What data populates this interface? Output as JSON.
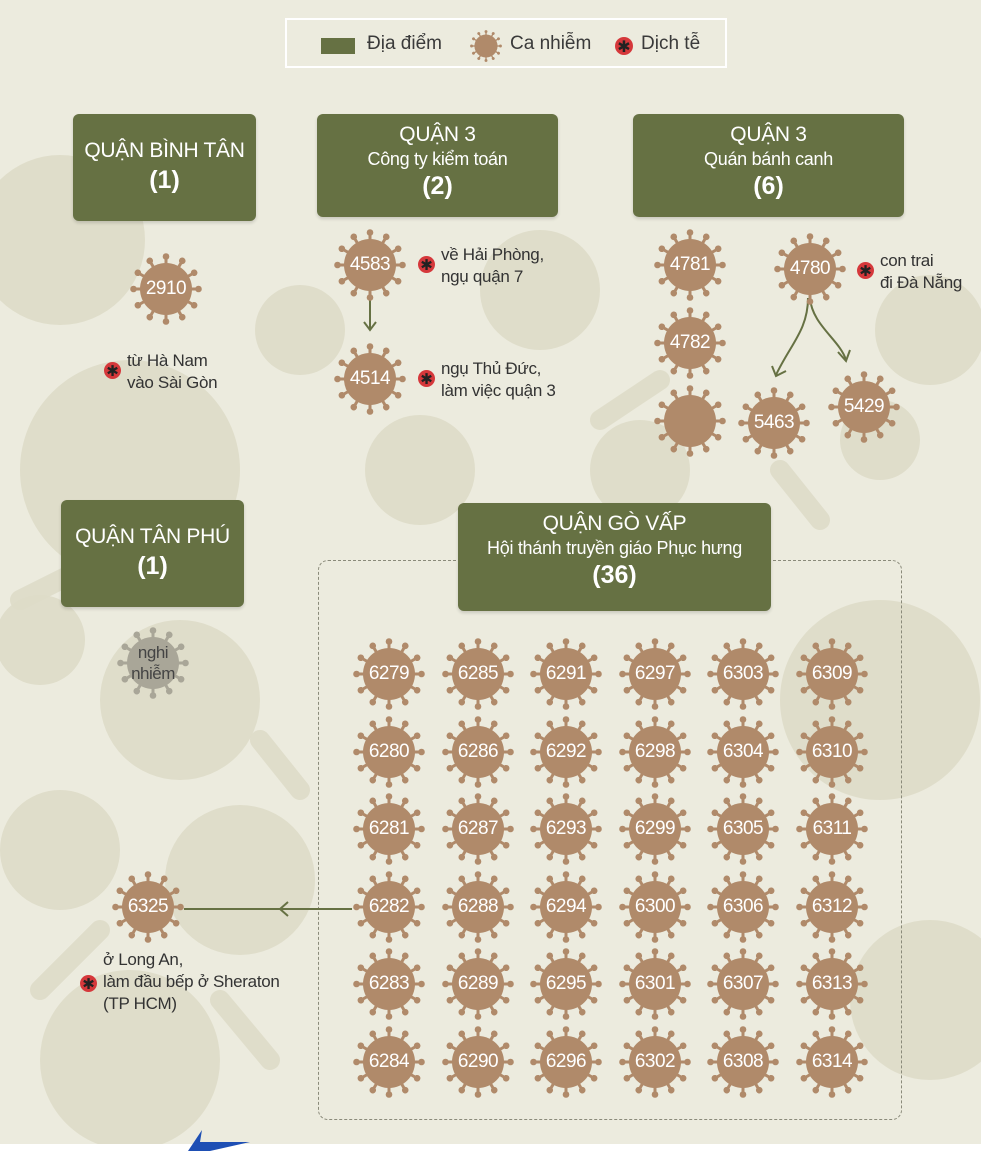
{
  "legend": {
    "location": "Địa điểm",
    "case": "Ca nhiễm",
    "epidemiology": "Dịch tễ",
    "dot_symbol": "✱"
  },
  "colors": {
    "location_box": "#667143",
    "virus": "#b08a6a",
    "virus_grey": "#a9a698",
    "epi_dot": "#d5383b",
    "arrow": "#667143",
    "background": "#ecebde"
  },
  "locations": {
    "binh_tan": {
      "title": "QUẬN BÌNH TÂN",
      "count": "(1)"
    },
    "q3_audit": {
      "title": "QUẬN 3",
      "subtitle": "Công ty kiểm toán",
      "count": "(2)"
    },
    "q3_noodle": {
      "title": "QUẬN 3",
      "subtitle": "Quán bánh canh",
      "count": "(6)"
    },
    "tan_phu": {
      "title": "QUẬN TÂN PHÚ",
      "count": "(1)"
    },
    "go_vap": {
      "title": "QUẬN GÒ VẤP",
      "subtitle": "Hội thánh truyền giáo Phục hưng",
      "count": "(36)"
    }
  },
  "cases": {
    "c2910": "2910",
    "c4583": "4583",
    "c4514": "4514",
    "c4781": "4781",
    "c4782": "4782",
    "c4780": "4780",
    "c5463": "5463",
    "c5429": "5429",
    "suspected": "nghi nhiễm",
    "c6325": "6325"
  },
  "notes": {
    "n2910": [
      "từ Hà Nam",
      "vào Sài Gòn"
    ],
    "n4583": [
      "về Hải Phòng,",
      "ngụ quận 7"
    ],
    "n4514": [
      "ngụ Thủ Đức,",
      "làm việc quận 3"
    ],
    "n4780": [
      "con trai",
      "đi Đà Nẵng"
    ],
    "n6325": [
      "ở Long An,",
      "làm đầu bếp ở Sheraton",
      "(TP HCM)"
    ]
  },
  "go_vap_cases": [
    [
      "6279",
      "6285",
      "6291",
      "6297",
      "6303",
      "6309"
    ],
    [
      "6280",
      "6286",
      "6292",
      "6298",
      "6304",
      "6310"
    ],
    [
      "6281",
      "6287",
      "6293",
      "6299",
      "6305",
      "6311"
    ],
    [
      "6282",
      "6288",
      "6294",
      "6300",
      "6306",
      "6312"
    ],
    [
      "6283",
      "6289",
      "6295",
      "6301",
      "6307",
      "6313"
    ],
    [
      "6284",
      "6290",
      "6296",
      "6302",
      "6308",
      "6314"
    ]
  ]
}
